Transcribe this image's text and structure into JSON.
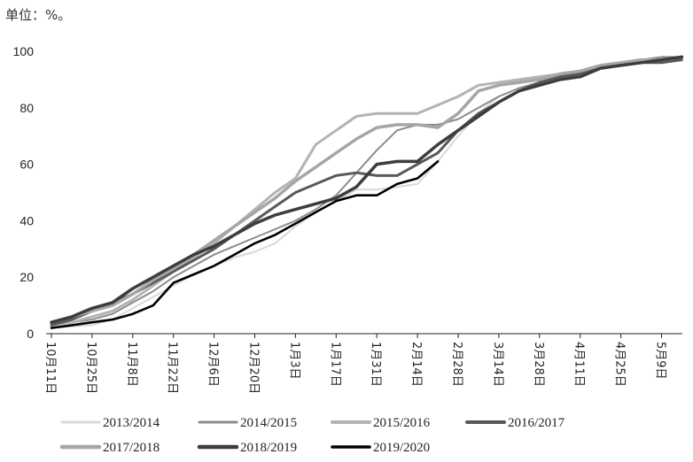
{
  "header": {
    "unit_label": "单位：%。"
  },
  "chart_data": {
    "type": "line",
    "title": "",
    "xlabel": "",
    "ylabel": "",
    "ylim": [
      0,
      100
    ],
    "yticks": [
      0,
      20,
      40,
      60,
      80,
      100
    ],
    "grid": false,
    "legend_position": "bottom",
    "x_ticks": [
      "10月11日",
      "10月25日",
      "11月8日",
      "11月22日",
      "12月6日",
      "12月20日",
      "1月3日",
      "1月17日",
      "1月31日",
      "2月14日",
      "2月28日",
      "3月14日",
      "3月28日",
      "4月11日",
      "4月25日",
      "5月9日"
    ],
    "x_points": [
      "10月11日",
      "10月18日",
      "10月25日",
      "11月1日",
      "11月8日",
      "11月15日",
      "11月22日",
      "11月29日",
      "12月6日",
      "12月13日",
      "12月20日",
      "12月27日",
      "1月3日",
      "1月10日",
      "1月17日",
      "1月24日",
      "1月31日",
      "2月7日",
      "2月14日",
      "2月21日",
      "2月28日",
      "3月7日",
      "3月14日",
      "3月21日",
      "3月28日",
      "4月4日",
      "4月11日",
      "4月18日",
      "4月25日",
      "5月2日",
      "5月9日",
      "5月16日"
    ],
    "series": [
      {
        "name": "2013/2014",
        "color": "#d9d9d9",
        "width": 2.0,
        "values": [
          2,
          2.5,
          3,
          5,
          9,
          13,
          17,
          21,
          24,
          27,
          29,
          32,
          38,
          43,
          47,
          51,
          51,
          52,
          53,
          61,
          70,
          78,
          84,
          87,
          89,
          91,
          92,
          94,
          95,
          96,
          97,
          98
        ]
      },
      {
        "name": "2014/2015",
        "color": "#8c8c8c",
        "width": 2.0,
        "values": [
          3,
          4,
          5,
          7,
          11,
          15,
          20,
          24,
          28,
          31,
          34,
          37,
          40,
          44,
          49,
          57,
          65,
          72,
          74,
          74,
          76,
          80,
          84,
          87,
          89,
          91,
          93,
          95,
          96,
          97,
          98,
          98
        ]
      },
      {
        "name": "2015/2016",
        "color": "#b3b3b3",
        "width": 3.0,
        "values": [
          3,
          4,
          6,
          8,
          12,
          17,
          22,
          27,
          32,
          38,
          44,
          50,
          55,
          67,
          72,
          77,
          78,
          78,
          78,
          81,
          84,
          88,
          89,
          90,
          91,
          92,
          93,
          95,
          96,
          97,
          97,
          98
        ]
      },
      {
        "name": "2016/2017",
        "color": "#595959",
        "width": 3.0,
        "values": [
          3,
          5,
          8,
          11,
          14,
          18,
          22,
          26,
          30,
          35,
          40,
          45,
          50,
          53,
          56,
          57,
          56,
          56,
          60,
          64,
          72,
          78,
          82,
          86,
          89,
          91,
          92,
          94,
          95,
          96,
          96,
          97
        ]
      },
      {
        "name": "2017/2018",
        "color": "#a6a6a6",
        "width": 3.5,
        "values": [
          4,
          6,
          8,
          10,
          14,
          19,
          23,
          28,
          33,
          38,
          43,
          48,
          54,
          59,
          64,
          69,
          73,
          74,
          74,
          73,
          78,
          86,
          88,
          89,
          90,
          92,
          93,
          95,
          96,
          97,
          97,
          98
        ]
      },
      {
        "name": "2018/2019",
        "color": "#3d3d3d",
        "width": 3.5,
        "values": [
          4,
          6,
          9,
          11,
          16,
          20,
          24,
          28,
          31,
          35,
          39,
          42,
          44,
          46,
          48,
          52,
          60,
          61,
          61,
          67,
          72,
          77,
          82,
          86,
          88,
          90,
          91,
          94,
          95,
          96,
          97,
          98
        ]
      },
      {
        "name": "2019/2020",
        "color": "#000000",
        "width": 2.6,
        "values": [
          2,
          3,
          4,
          5,
          7,
          10,
          18,
          21,
          24,
          28,
          32,
          35,
          39,
          43,
          47,
          49,
          49,
          53,
          55,
          61
        ]
      }
    ]
  }
}
